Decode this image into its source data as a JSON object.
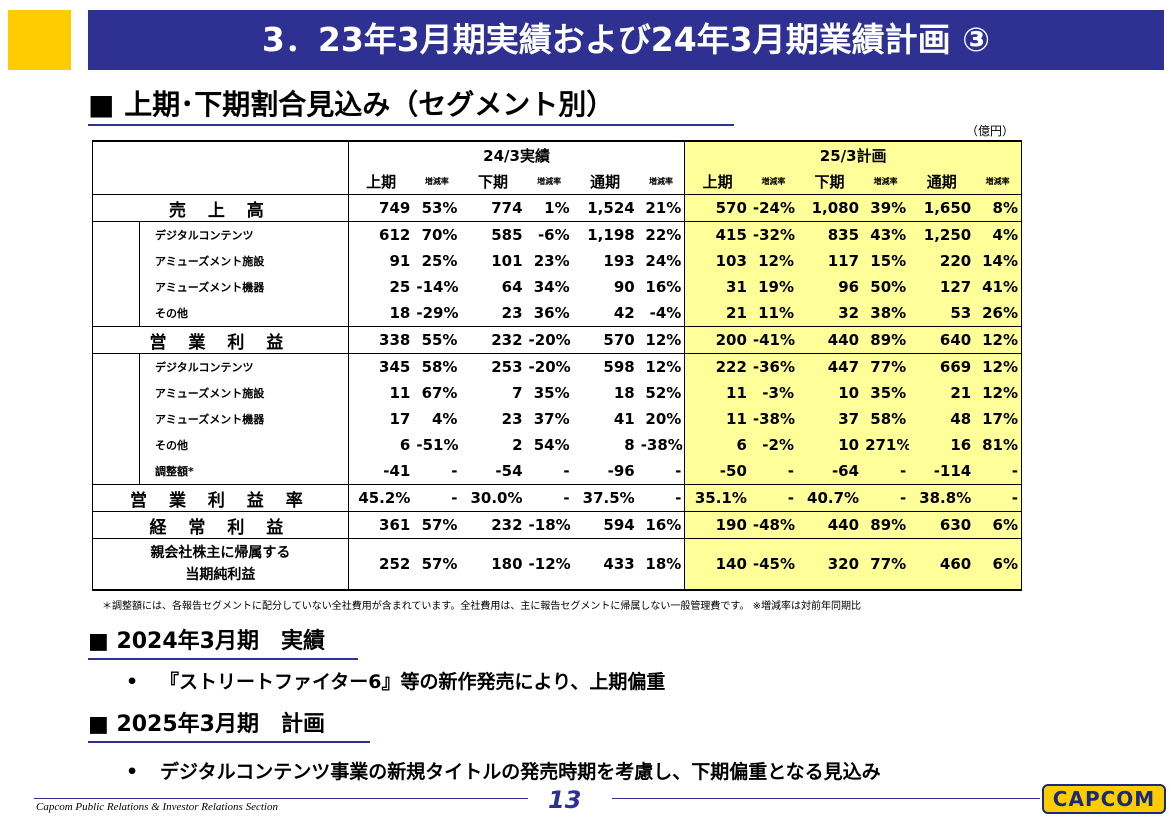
{
  "title": "3．23年3月期実績および24年3月期業績計画 ③",
  "section1": "■ 上期･下期割合見込み（セグメント別）",
  "unit": "（億円）",
  "table": {
    "group_24": "24/3実績",
    "group_25": "25/3計画",
    "col_h1": "上期",
    "col_h2": "下期",
    "col_fy": "通期",
    "col_rate": "増減率",
    "rows": [
      {
        "label": "売 上 高",
        "vals": [
          "749",
          "53%",
          "774",
          "1%",
          "1,524",
          "21%",
          "570",
          "-24%",
          "1,080",
          "39%",
          "1,650",
          "8%"
        ]
      },
      {
        "label": "デジタルコンテンツ",
        "vals": [
          "612",
          "70%",
          "585",
          "-6%",
          "1,198",
          "22%",
          "415",
          "-32%",
          "835",
          "43%",
          "1,250",
          "4%"
        ]
      },
      {
        "label": "アミューズメント施設",
        "vals": [
          "91",
          "25%",
          "101",
          "23%",
          "193",
          "24%",
          "103",
          "12%",
          "117",
          "15%",
          "220",
          "14%"
        ]
      },
      {
        "label": "アミューズメント機器",
        "vals": [
          "25",
          "-14%",
          "64",
          "34%",
          "90",
          "16%",
          "31",
          "19%",
          "96",
          "50%",
          "127",
          "41%"
        ]
      },
      {
        "label": "その他",
        "vals": [
          "18",
          "-29%",
          "23",
          "36%",
          "42",
          "-4%",
          "21",
          "11%",
          "32",
          "38%",
          "53",
          "26%"
        ]
      },
      {
        "label": "営 業 利 益",
        "vals": [
          "338",
          "55%",
          "232",
          "-20%",
          "570",
          "12%",
          "200",
          "-41%",
          "440",
          "89%",
          "640",
          "12%"
        ]
      },
      {
        "label": "デジタルコンテンツ",
        "vals": [
          "345",
          "58%",
          "253",
          "-20%",
          "598",
          "12%",
          "222",
          "-36%",
          "447",
          "77%",
          "669",
          "12%"
        ]
      },
      {
        "label": "アミューズメント施設",
        "vals": [
          "11",
          "67%",
          "7",
          "35%",
          "18",
          "52%",
          "11",
          "-3%",
          "10",
          "35%",
          "21",
          "12%"
        ]
      },
      {
        "label": "アミューズメント機器",
        "vals": [
          "17",
          "4%",
          "23",
          "37%",
          "41",
          "20%",
          "11",
          "-38%",
          "37",
          "58%",
          "48",
          "17%"
        ]
      },
      {
        "label": "その他",
        "vals": [
          "6",
          "-51%",
          "2",
          "54%",
          "8",
          "-38%",
          "6",
          "-2%",
          "10",
          "271%",
          "16",
          "81%"
        ]
      },
      {
        "label": "調整額*",
        "vals": [
          "-41",
          "-",
          "-54",
          "-",
          "-96",
          "-",
          "-50",
          "-",
          "-64",
          "-",
          "-114",
          "-"
        ]
      },
      {
        "label": "営 業 利 益 率",
        "vals": [
          "45.2%",
          "-",
          "30.0%",
          "-",
          "37.5%",
          "-",
          "35.1%",
          "-",
          "40.7%",
          "-",
          "38.8%",
          "-"
        ]
      },
      {
        "label": "経 常 利 益",
        "vals": [
          "361",
          "57%",
          "232",
          "-18%",
          "594",
          "16%",
          "190",
          "-48%",
          "440",
          "89%",
          "630",
          "6%"
        ]
      },
      {
        "label_line1": "親会社株主に帰属する",
        "label_line2": "当期純利益",
        "vals": [
          "252",
          "57%",
          "180",
          "-12%",
          "433",
          "18%",
          "140",
          "-45%",
          "320",
          "77%",
          "460",
          "6%"
        ]
      }
    ]
  },
  "footnote": "＊調整額には、各報告セグメントに配分していない全社費用が含まれています。全社費用は、主に報告セグメントに帰属しない一般管理費です。 ※増減率は対前年同期比",
  "section2": "■ 2024年3月期　実績",
  "bullet1": "『ストリートファイター6』等の新作発売により、上期偏重",
  "section3": "■ 2025年3月期　計画",
  "bullet2": "デジタルコンテンツ事業の新規タイトルの発売時期を考慮し、下期偏重となる見込み",
  "bullet_mark": "•",
  "footer": "Capcom Public Relations & Investor Relations Section",
  "page_number": "13",
  "logo": "CAPCOM",
  "colors": {
    "title_bg": "#2e3192",
    "accent": "#ffcc00",
    "plan_bg": "#ffff99"
  }
}
